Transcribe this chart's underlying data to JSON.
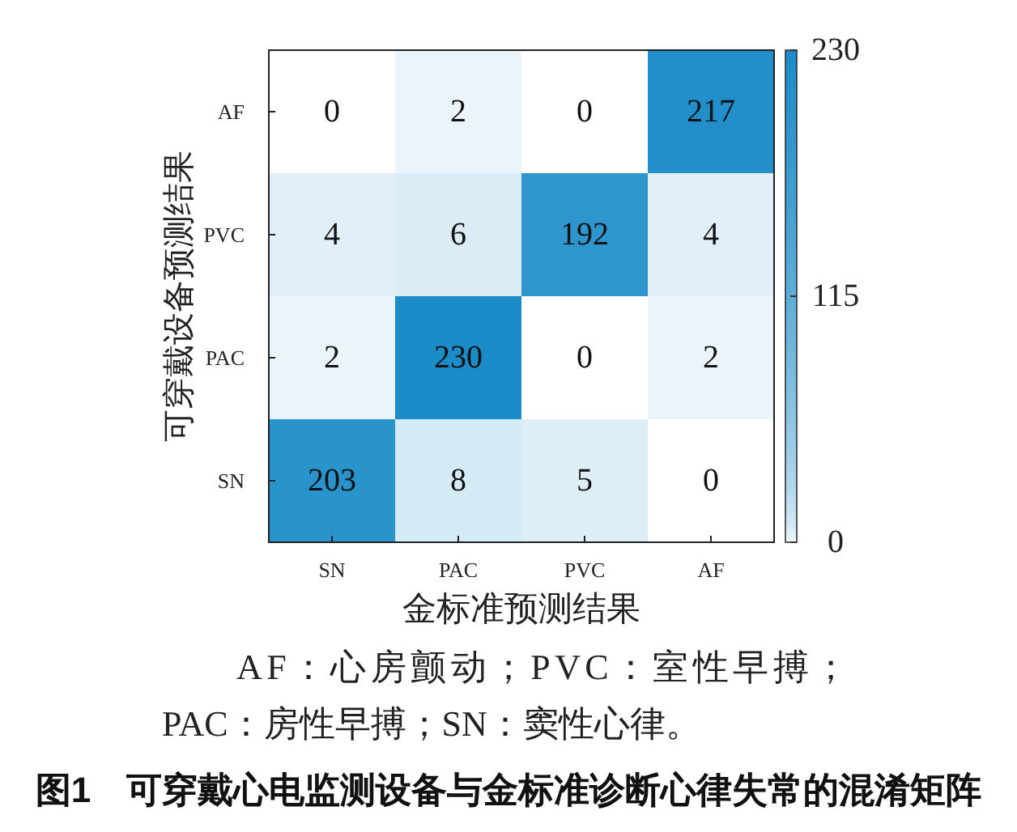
{
  "chart_data": {
    "type": "heatmap",
    "title": "图1　可穿戴心电监测设备与金标准诊断心律失常的混淆矩阵",
    "xlabel": "金标准预测结果",
    "ylabel": "可穿戴设备预测结果",
    "categories": [
      "SN",
      "PAC",
      "PVC",
      "AF"
    ],
    "y_categories": [
      "AF",
      "PVC",
      "PAC",
      "SN"
    ],
    "cells": [
      [
        0,
        2,
        0,
        217
      ],
      [
        4,
        6,
        192,
        4
      ],
      [
        2,
        230,
        0,
        2
      ],
      [
        203,
        8,
        5,
        0
      ]
    ],
    "clim": [
      0,
      230
    ],
    "cticks": [
      0,
      115,
      230
    ],
    "data_labels": true,
    "annotations": [
      "AF：心房颤动；PVC：室性早搏；PAC：房性早搏；SN：窦性心律。"
    ]
  }
}
